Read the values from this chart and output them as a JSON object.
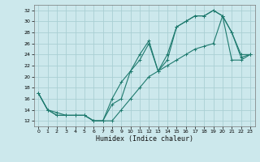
{
  "xlabel": "Humidex (Indice chaleur)",
  "bg_color": "#cce8ec",
  "grid_color": "#aacfd4",
  "line_color": "#1e7a6e",
  "xlim": [
    -0.5,
    23.5
  ],
  "ylim": [
    11,
    33
  ],
  "xticks": [
    0,
    1,
    2,
    3,
    4,
    5,
    6,
    7,
    8,
    9,
    10,
    11,
    12,
    13,
    14,
    15,
    16,
    17,
    18,
    19,
    20,
    21,
    22,
    23
  ],
  "yticks": [
    12,
    14,
    16,
    18,
    20,
    22,
    24,
    26,
    28,
    30,
    32
  ],
  "curve1_x": [
    0,
    1,
    2,
    3,
    4,
    5,
    6,
    7,
    8,
    9,
    10,
    11,
    12,
    13,
    14,
    15,
    16,
    17,
    18,
    19,
    20,
    21,
    22,
    23
  ],
  "curve1_y": [
    17,
    14,
    13,
    13,
    13,
    13,
    12,
    12,
    16,
    19,
    21,
    24,
    26.5,
    21,
    24,
    29,
    30,
    31,
    31,
    32,
    31,
    28,
    24,
    24
  ],
  "curve2_x": [
    0,
    1,
    2,
    3,
    4,
    5,
    6,
    7,
    8,
    9,
    10,
    11,
    12,
    13,
    14,
    15,
    16,
    17,
    18,
    19,
    20,
    21,
    22,
    23
  ],
  "curve2_y": [
    17,
    14,
    13.5,
    13,
    13,
    13,
    12,
    12,
    15,
    16,
    21,
    23,
    26,
    21,
    23,
    29,
    30,
    31,
    31,
    32,
    31,
    28,
    23.5,
    24
  ],
  "curve3_x": [
    0,
    1,
    2,
    3,
    4,
    5,
    6,
    7,
    8,
    9,
    10,
    11,
    12,
    13,
    14,
    15,
    16,
    17,
    18,
    19,
    20,
    21,
    22,
    23
  ],
  "curve3_y": [
    17,
    14,
    13,
    13,
    13,
    13,
    12,
    12,
    12,
    14,
    16,
    18,
    20,
    21,
    22,
    23,
    24,
    25,
    25.5,
    26,
    31,
    23,
    23,
    24
  ]
}
